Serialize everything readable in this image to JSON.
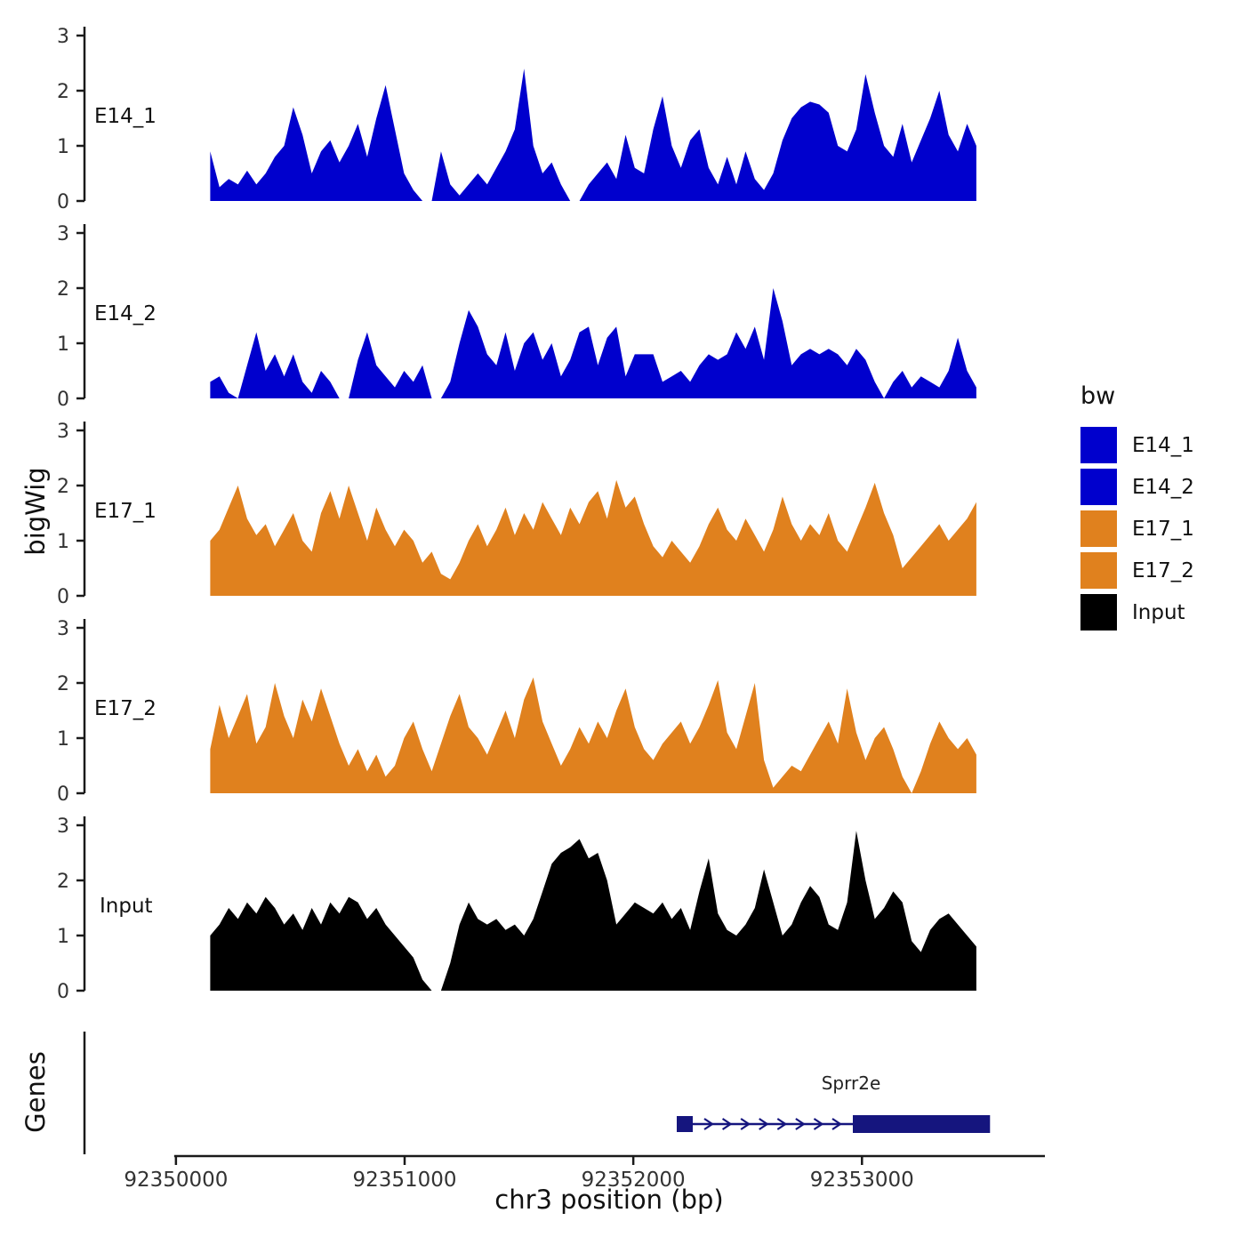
{
  "figure": {
    "y_axis_label": "bigWig",
    "genes_axis_label": "Genes",
    "x_axis_label": "chr3 position (bp)",
    "legend": {
      "title": "bw",
      "entries": [
        {
          "label": "E14_1",
          "color": "#0000CD"
        },
        {
          "label": "E14_2",
          "color": "#0000CD"
        },
        {
          "label": "E17_1",
          "color": "#E0811E"
        },
        {
          "label": "E17_2",
          "color": "#E0811E"
        },
        {
          "label": "Input",
          "color": "#000000"
        }
      ]
    }
  },
  "chart_data": {
    "type": "area",
    "title": "",
    "xlabel": "chr3 position (bp)",
    "ylabel": "bigWig",
    "x_axis_range": [
      92349600,
      92353800
    ],
    "x_ticks": [
      92350000,
      92351000,
      92352000,
      92353000
    ],
    "y_ticks": [
      0,
      1,
      2,
      3
    ],
    "ylim": [
      0,
      3
    ],
    "data_x_start": 92350150,
    "data_x_end": 92353500,
    "tracks": [
      {
        "name": "E14_1",
        "color": "#0000CD",
        "values": [
          0.9,
          0.25,
          0.4,
          0.3,
          0.55,
          0.3,
          0.5,
          0.8,
          1.0,
          1.7,
          1.2,
          0.5,
          0.9,
          1.1,
          0.7,
          1.0,
          1.4,
          0.8,
          1.5,
          2.1,
          1.3,
          0.5,
          0.2,
          0,
          0,
          0.9,
          0.3,
          0.1,
          0.3,
          0.5,
          0.3,
          0.6,
          0.9,
          1.3,
          2.4,
          1.0,
          0.5,
          0.7,
          0.3,
          0,
          0,
          0.3,
          0.5,
          0.7,
          0.4,
          1.2,
          0.6,
          0.5,
          1.3,
          1.9,
          1.0,
          0.6,
          1.1,
          1.3,
          0.6,
          0.3,
          0.8,
          0.3,
          0.9,
          0.4,
          0.2,
          0.5,
          1.1,
          1.5,
          1.7,
          1.8,
          1.75,
          1.6,
          1.0,
          0.9,
          1.3,
          2.3,
          1.6,
          1.0,
          0.8,
          1.4,
          0.7,
          1.1,
          1.5,
          2.0,
          1.2,
          0.9,
          1.4,
          1.0
        ]
      },
      {
        "name": "E14_2",
        "color": "#0000CD",
        "values": [
          0.3,
          0.4,
          0.1,
          0,
          0.6,
          1.2,
          0.5,
          0.8,
          0.4,
          0.8,
          0.3,
          0.1,
          0.5,
          0.3,
          0,
          0,
          0.7,
          1.2,
          0.6,
          0.4,
          0.2,
          0.5,
          0.3,
          0.6,
          0,
          0,
          0.3,
          1.0,
          1.6,
          1.3,
          0.8,
          0.6,
          1.2,
          0.5,
          1.0,
          1.2,
          0.7,
          1.0,
          0.4,
          0.7,
          1.2,
          1.3,
          0.6,
          1.1,
          1.3,
          0.4,
          0.8,
          0.8,
          0.8,
          0.3,
          0.4,
          0.5,
          0.3,
          0.6,
          0.8,
          0.7,
          0.8,
          1.2,
          0.9,
          1.3,
          0.7,
          2.0,
          1.4,
          0.6,
          0.8,
          0.9,
          0.8,
          0.9,
          0.8,
          0.6,
          0.9,
          0.7,
          0.3,
          0,
          0.3,
          0.5,
          0.2,
          0.4,
          0.3,
          0.2,
          0.5,
          1.1,
          0.5,
          0.2
        ]
      },
      {
        "name": "E17_1",
        "color": "#E0811E",
        "values": [
          1.0,
          1.2,
          1.6,
          2.0,
          1.4,
          1.1,
          1.3,
          0.9,
          1.2,
          1.5,
          1.0,
          0.8,
          1.5,
          1.9,
          1.4,
          2.0,
          1.5,
          1.0,
          1.6,
          1.2,
          0.9,
          1.2,
          1.0,
          0.6,
          0.8,
          0.4,
          0.3,
          0.6,
          1.0,
          1.3,
          0.9,
          1.2,
          1.6,
          1.1,
          1.5,
          1.2,
          1.7,
          1.4,
          1.1,
          1.6,
          1.3,
          1.7,
          1.9,
          1.4,
          2.1,
          1.6,
          1.8,
          1.3,
          0.9,
          0.7,
          1.0,
          0.8,
          0.6,
          0.9,
          1.3,
          1.6,
          1.2,
          1.0,
          1.4,
          1.1,
          0.8,
          1.2,
          1.8,
          1.3,
          1.0,
          1.3,
          1.1,
          1.5,
          1.0,
          0.8,
          1.2,
          1.6,
          2.05,
          1.5,
          1.1,
          0.5,
          0.7,
          0.9,
          1.1,
          1.3,
          1.0,
          1.2,
          1.4,
          1.7
        ]
      },
      {
        "name": "E17_2",
        "color": "#E0811E",
        "values": [
          0.8,
          1.6,
          1.0,
          1.4,
          1.8,
          0.9,
          1.2,
          2.0,
          1.4,
          1.0,
          1.7,
          1.3,
          1.9,
          1.4,
          0.9,
          0.5,
          0.8,
          0.4,
          0.7,
          0.3,
          0.5,
          1.0,
          1.3,
          0.8,
          0.4,
          0.9,
          1.4,
          1.8,
          1.2,
          1.0,
          0.7,
          1.1,
          1.5,
          1.0,
          1.7,
          2.1,
          1.3,
          0.9,
          0.5,
          0.8,
          1.2,
          0.9,
          1.3,
          1.0,
          1.5,
          1.9,
          1.2,
          0.8,
          0.6,
          0.9,
          1.1,
          1.3,
          0.9,
          1.2,
          1.6,
          2.05,
          1.1,
          0.8,
          1.4,
          2.0,
          0.6,
          0.1,
          0.3,
          0.5,
          0.4,
          0.7,
          1.0,
          1.3,
          0.9,
          1.9,
          1.1,
          0.6,
          1.0,
          1.2,
          0.8,
          0.3,
          0,
          0.4,
          0.9,
          1.3,
          1.0,
          0.8,
          1.0,
          0.7
        ]
      },
      {
        "name": "Input",
        "color": "#000000",
        "values": [
          1.0,
          1.2,
          1.5,
          1.3,
          1.6,
          1.4,
          1.7,
          1.5,
          1.2,
          1.4,
          1.1,
          1.5,
          1.2,
          1.6,
          1.4,
          1.7,
          1.6,
          1.3,
          1.5,
          1.2,
          1.0,
          0.8,
          0.6,
          0.2,
          0,
          0,
          0.5,
          1.2,
          1.6,
          1.3,
          1.2,
          1.3,
          1.1,
          1.2,
          1.0,
          1.3,
          1.8,
          2.3,
          2.5,
          2.6,
          2.75,
          2.4,
          2.5,
          2.0,
          1.2,
          1.4,
          1.6,
          1.5,
          1.4,
          1.6,
          1.3,
          1.5,
          1.1,
          1.8,
          2.4,
          1.4,
          1.1,
          1.0,
          1.2,
          1.5,
          2.2,
          1.6,
          1.0,
          1.2,
          1.6,
          1.9,
          1.7,
          1.2,
          1.1,
          1.6,
          2.9,
          2.0,
          1.3,
          1.5,
          1.8,
          1.6,
          0.9,
          0.7,
          1.1,
          1.3,
          1.4,
          1.2,
          1.0,
          0.8
        ]
      }
    ],
    "genes": [
      {
        "name": "Sprr2e",
        "start": 92352190,
        "promoter_box_end": 92352260,
        "exon_start": 92352960,
        "end": 92353560,
        "strand": "+",
        "color": "#15157E"
      }
    ]
  }
}
